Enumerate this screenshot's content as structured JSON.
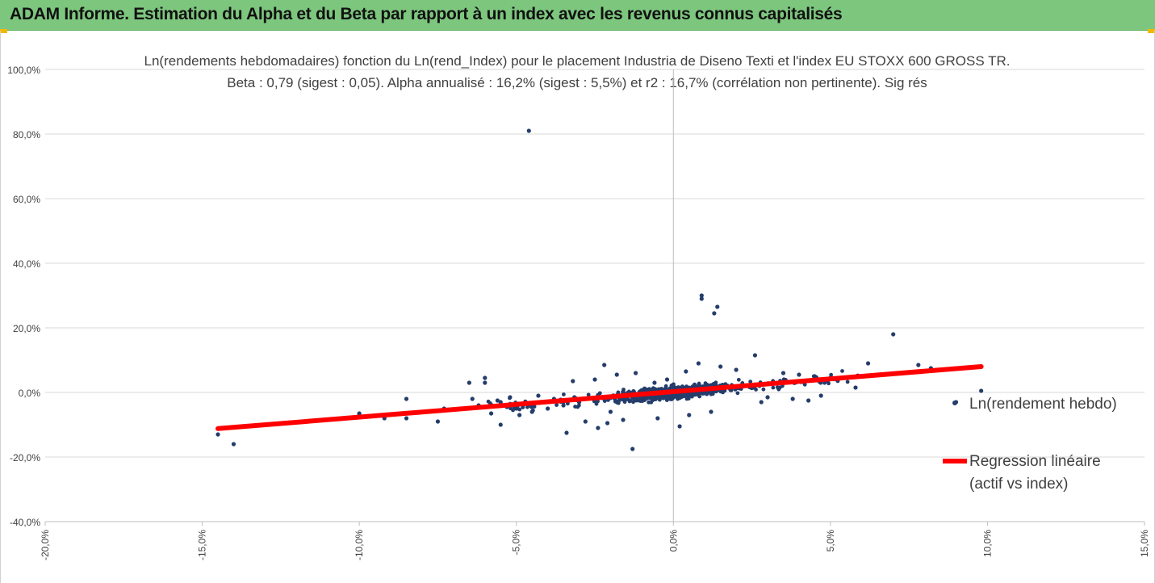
{
  "header": {
    "title": "ADAM Informe. Estimation du Alpha et du Beta par rapport à un index avec les revenus connus capitalisés"
  },
  "colors": {
    "banner": "#7dc67e",
    "scatter": "#243d6b",
    "regression": "#ff0000",
    "grid": "#d9d9d9"
  },
  "chart_data": {
    "type": "scatter",
    "title": "Ln(rendements hebdomadaires) fonction du Ln(rend_Index) pour le placement Industria de Diseno Texti et l'index EU STOXX 600 GROSS TR.",
    "subtitle": "Beta : 0,79 (sigest : 0,05). Alpha annualisé : 16,2% (sigest : 5,5%) et r2 : 16,7% (corrélation non pertinente). Sig rés",
    "xlim": [
      -0.2,
      0.15
    ],
    "ylim": [
      -0.4,
      1.0
    ],
    "x_ticks": [
      -0.2,
      -0.15,
      -0.1,
      -0.05,
      0,
      0.05,
      0.1,
      0.15
    ],
    "y_ticks": [
      -0.4,
      -0.2,
      0,
      0.2,
      0.4,
      0.6,
      0.8,
      1.0
    ],
    "x_tick_labels": [
      "-20,0%",
      "-15,0%",
      "-10,0%",
      "-5,0%",
      "0,0%",
      "5,0%",
      "10,0%",
      "15,0%"
    ],
    "y_tick_labels": [
      "-40,0%",
      "-20,0%",
      "0,0%",
      "20,0%",
      "40,0%",
      "60,0%",
      "80,0%",
      "100,0%"
    ],
    "grid": "horizontal",
    "legend": "right",
    "series": [
      {
        "name": "Ln(rendement hebdo)",
        "kind": "scatter",
        "points": [
          [
            -0.046,
            0.81
          ],
          [
            0.009,
            0.3
          ],
          [
            0.009,
            0.29
          ],
          [
            0.014,
            0.265
          ],
          [
            0.013,
            0.245
          ],
          [
            0.07,
            0.18
          ],
          [
            -0.145,
            -0.13
          ],
          [
            -0.14,
            -0.16
          ],
          [
            -0.1,
            -0.065
          ],
          [
            -0.1,
            -0.07
          ],
          [
            -0.092,
            -0.08
          ],
          [
            -0.085,
            -0.02
          ],
          [
            -0.085,
            -0.08
          ],
          [
            -0.08,
            -0.06
          ],
          [
            -0.075,
            -0.09
          ],
          [
            -0.073,
            -0.05
          ],
          [
            -0.068,
            -0.05
          ],
          [
            -0.065,
            0.03
          ],
          [
            -0.064,
            -0.02
          ],
          [
            -0.062,
            -0.04
          ],
          [
            -0.06,
            0.045
          ],
          [
            -0.06,
            0.03
          ],
          [
            -0.058,
            -0.065
          ],
          [
            -0.056,
            -0.025
          ],
          [
            -0.055,
            -0.1
          ],
          [
            -0.055,
            -0.03
          ],
          [
            -0.052,
            -0.015
          ],
          [
            -0.05,
            -0.05
          ],
          [
            -0.049,
            -0.07
          ],
          [
            -0.047,
            -0.03
          ],
          [
            -0.045,
            -0.06
          ],
          [
            -0.043,
            -0.01
          ],
          [
            -0.04,
            -0.05
          ],
          [
            -0.038,
            -0.02
          ],
          [
            -0.035,
            -0.04
          ],
          [
            -0.034,
            -0.125
          ],
          [
            -0.032,
            0.035
          ],
          [
            -0.03,
            -0.03
          ],
          [
            -0.028,
            -0.09
          ],
          [
            -0.025,
            0.04
          ],
          [
            -0.024,
            -0.11
          ],
          [
            -0.022,
            0.085
          ],
          [
            -0.021,
            -0.095
          ],
          [
            -0.02,
            -0.06
          ],
          [
            -0.018,
            0.055
          ],
          [
            -0.016,
            -0.085
          ],
          [
            -0.013,
            -0.175
          ],
          [
            -0.012,
            0.06
          ],
          [
            -0.005,
            -0.08
          ],
          [
            0.002,
            -0.105
          ],
          [
            0.005,
            -0.07
          ],
          [
            0.008,
            0.09
          ],
          [
            0.012,
            -0.06
          ],
          [
            0.015,
            0.08
          ],
          [
            0.02,
            0.07
          ],
          [
            0.026,
            0.115
          ],
          [
            0.028,
            -0.03
          ],
          [
            0.03,
            -0.015
          ],
          [
            0.035,
            0.06
          ],
          [
            0.038,
            -0.02
          ],
          [
            0.04,
            0.055
          ],
          [
            0.043,
            -0.025
          ],
          [
            0.045,
            0.05
          ],
          [
            0.047,
            -0.01
          ],
          [
            0.05,
            0.045
          ],
          [
            0.055,
            0.045
          ],
          [
            0.058,
            0.015
          ],
          [
            0.062,
            0.09
          ],
          [
            0.078,
            0.085
          ],
          [
            0.082,
            0.075
          ],
          [
            0.09,
            -0.03
          ],
          [
            0.098,
            0.005
          ],
          [
            -0.002,
            0.04
          ],
          [
            -0.006,
            0.03
          ],
          [
            0.004,
            0.065
          ]
        ]
      },
      {
        "name": "Regression linéaire (actif vs index)",
        "kind": "line",
        "points": [
          [
            -0.145,
            -0.112
          ],
          [
            0.098,
            0.08
          ]
        ]
      }
    ],
    "legend_entries": [
      "Ln(rendement hebdo)",
      "Regression linéaire",
      "(actif vs index)"
    ]
  }
}
